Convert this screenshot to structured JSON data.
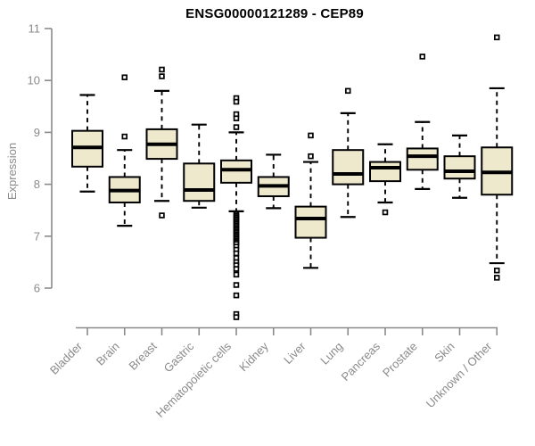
{
  "title": "ENSG00000121289 - CEP89",
  "colors": {
    "box_fill": "#EEE8CD",
    "box_border": "#000000",
    "median": "#000000",
    "whisker": "#000000",
    "outlier_stroke": "#000000",
    "outlier_fill": "#FFFFFF",
    "axis": "#8a8a8a",
    "tick_label": "#8a8a8a",
    "background": "#FFFFFF",
    "title_color": "#000000"
  },
  "chart_data": {
    "type": "boxplot",
    "title": "ENSG00000121289 - CEP89",
    "xlabel": "",
    "ylabel": "Expression",
    "ylim": [
      6,
      11
    ],
    "yticks": [
      6,
      7,
      8,
      9,
      10,
      11
    ],
    "grid": false,
    "legend": "none",
    "x_label_rotation_deg": -45,
    "categories": [
      "Bladder",
      "Brain",
      "Breast",
      "Gastric",
      "Hematopoietic cells",
      "Kidney",
      "Liver",
      "Lung",
      "Pancreas",
      "Prostate",
      "Skin",
      "Unknown / Other"
    ],
    "series": [
      {
        "name": "Bladder",
        "whislo": 7.86,
        "q1": 8.34,
        "med": 8.71,
        "q3": 9.03,
        "whishi": 9.72,
        "outliers": []
      },
      {
        "name": "Brain",
        "whislo": 7.2,
        "q1": 7.65,
        "med": 7.88,
        "q3": 8.14,
        "whishi": 8.66,
        "outliers": [
          10.06,
          8.92
        ]
      },
      {
        "name": "Breast",
        "whislo": 7.68,
        "q1": 8.49,
        "med": 8.77,
        "q3": 9.06,
        "whishi": 9.8,
        "outliers": [
          10.21,
          10.08,
          7.4
        ]
      },
      {
        "name": "Gastric",
        "whislo": 7.55,
        "q1": 7.68,
        "med": 7.89,
        "q3": 8.4,
        "whishi": 9.15,
        "outliers": []
      },
      {
        "name": "Hematopoietic cells",
        "whislo": 7.48,
        "q1": 8.03,
        "med": 8.28,
        "q3": 8.46,
        "whishi": 9.0,
        "outliers": [
          9.66,
          9.59,
          9.35,
          9.27,
          9.1,
          7.42,
          7.39,
          7.36,
          7.33,
          7.3,
          7.27,
          7.24,
          7.21,
          7.18,
          7.15,
          7.12,
          7.09,
          7.06,
          7.03,
          7.0,
          6.97,
          6.94,
          6.91,
          6.88,
          6.85,
          6.8,
          6.74,
          6.67,
          6.58,
          6.5,
          6.44,
          6.37,
          6.26,
          6.06,
          5.86,
          5.5,
          5.44
        ]
      },
      {
        "name": "Kidney",
        "whislo": 7.54,
        "q1": 7.77,
        "med": 7.97,
        "q3": 8.14,
        "whishi": 8.57,
        "outliers": []
      },
      {
        "name": "Liver",
        "whislo": 6.39,
        "q1": 6.97,
        "med": 7.34,
        "q3": 7.57,
        "whishi": 8.43,
        "outliers": [
          8.94,
          8.54
        ]
      },
      {
        "name": "Lung",
        "whislo": 7.37,
        "q1": 8.0,
        "med": 8.2,
        "q3": 8.66,
        "whishi": 9.37,
        "outliers": [
          9.8
        ]
      },
      {
        "name": "Pancreas",
        "whislo": 7.65,
        "q1": 8.06,
        "med": 8.32,
        "q3": 8.43,
        "whishi": 8.77,
        "outliers": [
          7.46
        ]
      },
      {
        "name": "Prostate",
        "whislo": 7.91,
        "q1": 8.28,
        "med": 8.54,
        "q3": 8.69,
        "whishi": 9.2,
        "outliers": [
          10.46
        ]
      },
      {
        "name": "Skin",
        "whislo": 7.74,
        "q1": 8.11,
        "med": 8.25,
        "q3": 8.54,
        "whishi": 8.94,
        "outliers": []
      },
      {
        "name": "Unknown / Other",
        "whislo": 6.48,
        "q1": 7.8,
        "med": 8.23,
        "q3": 8.71,
        "whishi": 9.85,
        "outliers": [
          10.83,
          6.34,
          6.2
        ]
      }
    ]
  }
}
